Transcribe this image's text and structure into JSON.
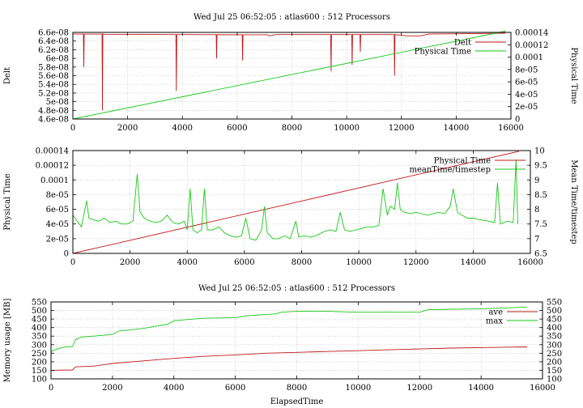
{
  "chart_data": [
    {
      "type": "line",
      "title": "Wed Jul 25 06:52:05 : atlas600 : 512 Processors",
      "xlabel": "",
      "ylabel": "Delt",
      "y2label": "Physical Time",
      "xlim": [
        0,
        16000
      ],
      "ylim": [
        4.6e-08,
        6.6e-08
      ],
      "y2lim": [
        0,
        0.00014
      ],
      "xticks": [
        "0",
        "2000",
        "4000",
        "6000",
        "8000",
        "10000",
        "12000",
        "14000",
        "16000"
      ],
      "yticks": [
        "4.6e-08",
        "4.8e-08",
        "5e-08",
        "5.2e-08",
        "5.4e-08",
        "5.6e-08",
        "5.8e-08",
        "6e-08",
        "6.2e-08",
        "6.4e-08",
        "6.6e-08"
      ],
      "y2ticks": [
        "0",
        "2e-05",
        "4e-05",
        "6e-05",
        "8e-05",
        "0.0001",
        "0.00012",
        "0.00014"
      ],
      "legend": "top-right",
      "grid": true,
      "series": [
        {
          "name": "Delt",
          "color": "#c01818",
          "axis": "left",
          "baseline": [
            [
              0,
              6.56e-08
            ],
            [
              1100,
              6.56e-08
            ],
            [
              1200,
              6.555e-08
            ],
            [
              4000,
              6.55e-08
            ],
            [
              7100,
              6.545e-08
            ],
            [
              7200,
              6.52e-08
            ],
            [
              7400,
              6.55e-08
            ],
            [
              9500,
              6.55e-08
            ],
            [
              10200,
              6.55e-08
            ],
            [
              11700,
              6.55e-08
            ],
            [
              11900,
              6.54e-08
            ],
            [
              12200,
              6.52e-08
            ],
            [
              12700,
              6.52e-08
            ],
            [
              13000,
              6.56e-08
            ],
            [
              15800,
              6.58e-08
            ]
          ],
          "dips": [
            [
              400,
              5.8e-08
            ],
            [
              1080,
              4.8e-08
            ],
            [
              3780,
              5.25e-08
            ],
            [
              5250,
              6e-08
            ],
            [
              6200,
              5.95e-08
            ],
            [
              9430,
              5.7e-08
            ],
            [
              10200,
              5.85e-08
            ],
            [
              10500,
              6.15e-08
            ],
            [
              11750,
              5.6e-08
            ]
          ]
        },
        {
          "name": "Physical Time",
          "color": "#18c818",
          "axis": "right",
          "points": [
            [
              0,
              0
            ],
            [
              15800,
              0.000142
            ]
          ]
        }
      ]
    },
    {
      "type": "line",
      "title": "",
      "xlabel": "",
      "ylabel": "Physical Time",
      "y2label": "Mean Time/timestep",
      "xlim": [
        0,
        16000
      ],
      "ylim": [
        0,
        0.00014
      ],
      "y2lim": [
        6.5,
        10
      ],
      "xticks": [
        "0",
        "2000",
        "4000",
        "6000",
        "8000",
        "10000",
        "12000",
        "14000",
        "16000"
      ],
      "yticks": [
        "0",
        "2e-05",
        "4e-05",
        "6e-05",
        "8e-05",
        "0.0001",
        "0.00012",
        "0.00014"
      ],
      "y2ticks": [
        "6.5",
        "7",
        "7.5",
        "8",
        "8.5",
        "9",
        "9.5",
        "10"
      ],
      "legend": "top-right",
      "grid": true,
      "series": [
        {
          "name": "Physical Time",
          "color": "#c01818",
          "axis": "left",
          "points": [
            [
              0,
              0
            ],
            [
              15600,
              0.000139
            ]
          ]
        },
        {
          "name": "meanTime/timestep",
          "color": "#18c818",
          "axis": "right",
          "points": [
            [
              0,
              7.8
            ],
            [
              150,
              7.6
            ],
            [
              300,
              7.4
            ],
            [
              480,
              8.3
            ],
            [
              560,
              7.7
            ],
            [
              700,
              7.65
            ],
            [
              900,
              7.6
            ],
            [
              1100,
              7.7
            ],
            [
              1300,
              7.55
            ],
            [
              1500,
              7.6
            ],
            [
              1700,
              7.5
            ],
            [
              1900,
              7.5
            ],
            [
              2100,
              7.6
            ],
            [
              2250,
              9.2
            ],
            [
              2350,
              7.9
            ],
            [
              2500,
              7.7
            ],
            [
              2700,
              7.6
            ],
            [
              2900,
              7.55
            ],
            [
              3100,
              7.6
            ],
            [
              3300,
              7.8
            ],
            [
              3500,
              7.55
            ],
            [
              3700,
              7.5
            ],
            [
              3900,
              7.6
            ],
            [
              4000,
              7.3
            ],
            [
              4100,
              8.7
            ],
            [
              4200,
              7.3
            ],
            [
              4350,
              7.2
            ],
            [
              4500,
              7.3
            ],
            [
              4600,
              8.7
            ],
            [
              4700,
              7.3
            ],
            [
              4900,
              7.3
            ],
            [
              5100,
              7.4
            ],
            [
              5300,
              7.2
            ],
            [
              5500,
              7.1
            ],
            [
              5700,
              7.05
            ],
            [
              5900,
              7.1
            ],
            [
              6050,
              7.7
            ],
            [
              6200,
              7.0
            ],
            [
              6400,
              6.95
            ],
            [
              6600,
              7.3
            ],
            [
              6700,
              8.1
            ],
            [
              6800,
              7.2
            ],
            [
              7000,
              7.0
            ],
            [
              7200,
              7.0
            ],
            [
              7400,
              7.1
            ],
            [
              7600,
              7.0
            ],
            [
              7800,
              7.6
            ],
            [
              7900,
              7.05
            ],
            [
              8100,
              7.1
            ],
            [
              8300,
              7.05
            ],
            [
              8500,
              7.1
            ],
            [
              8800,
              7.25
            ],
            [
              9000,
              7.3
            ],
            [
              9200,
              7.25
            ],
            [
              9350,
              7.9
            ],
            [
              9500,
              7.3
            ],
            [
              9700,
              7.25
            ],
            [
              9900,
              7.3
            ],
            [
              10100,
              7.35
            ],
            [
              10300,
              7.4
            ],
            [
              10500,
              7.4
            ],
            [
              10700,
              7.45
            ],
            [
              10850,
              8.7
            ],
            [
              11000,
              7.8
            ],
            [
              11100,
              8.1
            ],
            [
              11250,
              8.0
            ],
            [
              11350,
              8.9
            ],
            [
              11450,
              8.0
            ],
            [
              11600,
              7.9
            ],
            [
              11800,
              7.85
            ],
            [
              12000,
              7.9
            ],
            [
              12200,
              7.85
            ],
            [
              12400,
              7.8
            ],
            [
              12600,
              7.85
            ],
            [
              12800,
              7.9
            ],
            [
              13000,
              7.85
            ],
            [
              13200,
              8.1
            ],
            [
              13300,
              8.7
            ],
            [
              13450,
              7.9
            ],
            [
              13600,
              7.8
            ],
            [
              13800,
              7.7
            ],
            [
              14000,
              7.7
            ],
            [
              14200,
              7.65
            ],
            [
              14500,
              7.6
            ],
            [
              14750,
              7.55
            ],
            [
              14850,
              8.9
            ],
            [
              14950,
              7.5
            ],
            [
              15200,
              7.6
            ],
            [
              15400,
              7.55
            ],
            [
              15500,
              9.7
            ],
            [
              15560,
              7.5
            ]
          ]
        }
      ]
    },
    {
      "type": "line",
      "title": "Wed Jul 25 06:52:05 : atlas600 : 512 Processors",
      "xlabel": "ElapsedTime",
      "ylabel": "Memory usage [MB]",
      "y2label": "",
      "xlim": [
        0,
        16000
      ],
      "ylim": [
        100,
        550
      ],
      "y2lim": [
        100,
        550
      ],
      "xticks": [
        "0",
        "2000",
        "4000",
        "6000",
        "8000",
        "10000",
        "12000",
        "14000",
        "16000"
      ],
      "yticks": [
        "100",
        "150",
        "200",
        "250",
        "300",
        "350",
        "400",
        "450",
        "500",
        "550"
      ],
      "y2ticks": [
        "100",
        "150",
        "200",
        "250",
        "300",
        "350",
        "400",
        "450",
        "500",
        "550"
      ],
      "legend": "top-right",
      "grid": true,
      "series": [
        {
          "name": "ave",
          "color": "#c01818",
          "axis": "left",
          "points": [
            [
              0,
              150
            ],
            [
              700,
              152
            ],
            [
              800,
              170
            ],
            [
              1400,
              175
            ],
            [
              2000,
              190
            ],
            [
              3000,
              205
            ],
            [
              4000,
              220
            ],
            [
              5000,
              232
            ],
            [
              6000,
              240
            ],
            [
              7000,
              250
            ],
            [
              8000,
              255
            ],
            [
              9000,
              260
            ],
            [
              10000,
              265
            ],
            [
              11000,
              270
            ],
            [
              12000,
              275
            ],
            [
              13000,
              280
            ],
            [
              14000,
              283
            ],
            [
              15500,
              287
            ]
          ]
        },
        {
          "name": "max",
          "color": "#18c818",
          "axis": "left",
          "points": [
            [
              0,
              260
            ],
            [
              200,
              275
            ],
            [
              400,
              285
            ],
            [
              700,
              290
            ],
            [
              800,
              330
            ],
            [
              1000,
              345
            ],
            [
              1400,
              350
            ],
            [
              2000,
              360
            ],
            [
              2200,
              380
            ],
            [
              3000,
              395
            ],
            [
              3800,
              420
            ],
            [
              4000,
              440
            ],
            [
              4300,
              445
            ],
            [
              5000,
              455
            ],
            [
              6000,
              458
            ],
            [
              6400,
              470
            ],
            [
              7300,
              480
            ],
            [
              7500,
              490
            ],
            [
              8000,
              495
            ],
            [
              9000,
              495
            ],
            [
              10000,
              490
            ],
            [
              12000,
              490
            ],
            [
              12300,
              505
            ],
            [
              14000,
              510
            ],
            [
              14800,
              515
            ],
            [
              15500,
              520
            ]
          ]
        }
      ]
    }
  ]
}
